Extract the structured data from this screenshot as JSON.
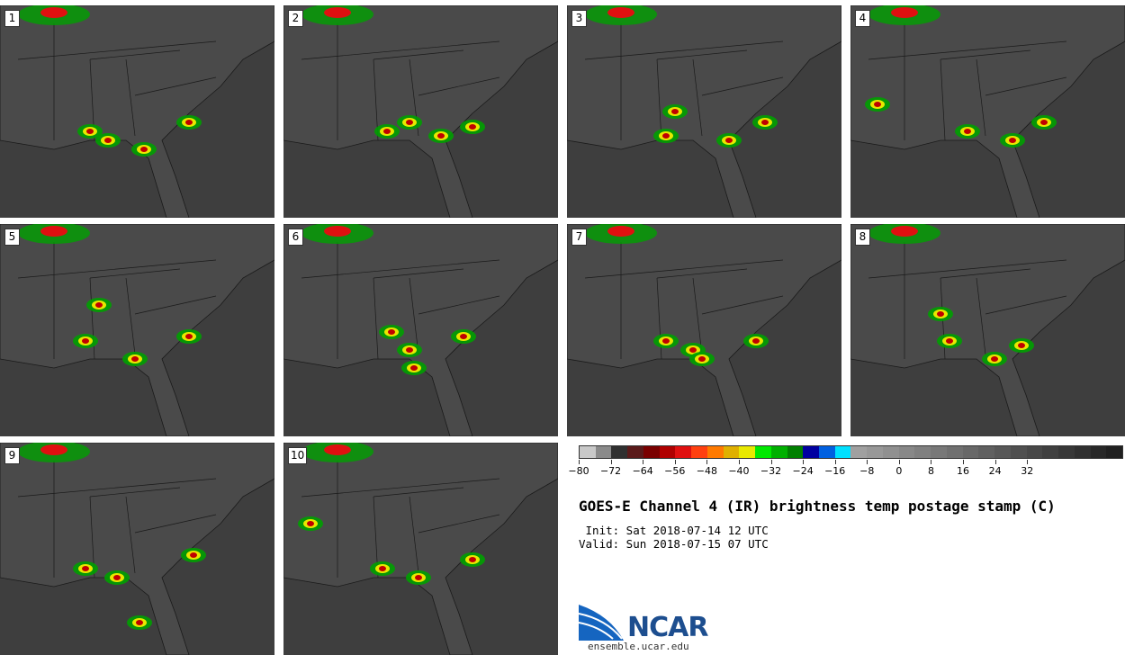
{
  "panels": [
    {
      "label": "1"
    },
    {
      "label": "2"
    },
    {
      "label": "3"
    },
    {
      "label": "4"
    },
    {
      "label": "5"
    },
    {
      "label": "6"
    },
    {
      "label": "7"
    },
    {
      "label": "8"
    },
    {
      "label": "9"
    },
    {
      "label": "10"
    }
  ],
  "colorbar": {
    "colors": [
      "#c8c8c8",
      "#8a8a8a",
      "#303030",
      "#5a1a1a",
      "#7a0000",
      "#b00000",
      "#e01010",
      "#ff4010",
      "#ff7a00",
      "#e0b000",
      "#e8e800",
      "#00e800",
      "#00b000",
      "#008000",
      "#0000a0",
      "#0060e0",
      "#00e0ff",
      "#a0a0a0",
      "#989898",
      "#909090",
      "#888888",
      "#808080",
      "#787878",
      "#707070",
      "#686868",
      "#606060",
      "#585858",
      "#505050",
      "#484848",
      "#404040",
      "#383838",
      "#303030",
      "#282828",
      "#202020"
    ],
    "ticks": [
      "−80",
      "−72",
      "−64",
      "−56",
      "−48",
      "−40",
      "−32",
      "−24",
      "−16",
      "−8",
      "0",
      "8",
      "16",
      "24",
      "32"
    ]
  },
  "title": "GOES-E Channel 4 (IR) brightness temp postage stamp (C)",
  "init": " Init: Sat 2018-07-14 12 UTC",
  "valid": "Valid: Sun 2018-07-15 07 UTC",
  "logo": {
    "word": "NCAR",
    "url": "ensemble.ucar.edu"
  },
  "colors": {
    "background": "#3e3e3e",
    "land": "#4a4a4a",
    "border": "#1a1a1a"
  }
}
